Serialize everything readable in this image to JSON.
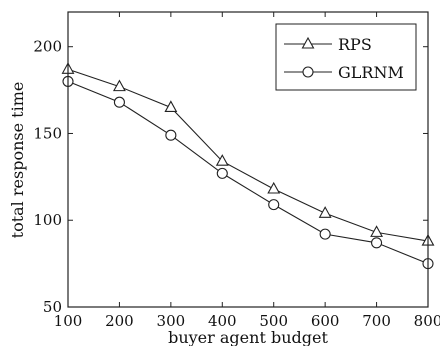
{
  "chart_data": {
    "type": "line",
    "x": [
      100,
      200,
      300,
      400,
      500,
      600,
      700,
      800
    ],
    "series": [
      {
        "name": "RPS",
        "marker": "triangle",
        "values": [
          187,
          177,
          165,
          134,
          118,
          104,
          93,
          88
        ]
      },
      {
        "name": "GLRNM",
        "marker": "circle",
        "values": [
          180,
          168,
          149,
          127,
          109,
          92,
          87,
          75
        ]
      }
    ],
    "xlabel": "buyer agent budget",
    "ylabel": "total response time",
    "xlim": [
      100,
      800
    ],
    "ylim": [
      50,
      220
    ],
    "xticks": [
      100,
      200,
      300,
      400,
      500,
      600,
      700,
      800
    ],
    "yticks": [
      50,
      100,
      150,
      200
    ],
    "grid": false,
    "legend_position": "top-right"
  }
}
